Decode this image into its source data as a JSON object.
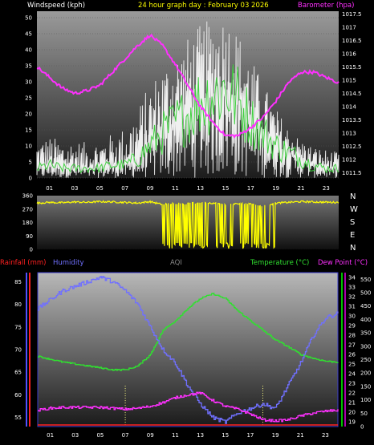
{
  "header": {
    "windspeed": "Windspeed (kph)",
    "title": "24 hour graph day : February 03 2026",
    "barometer": "Barometer (hpa)"
  },
  "bottom_header": {
    "rainfall": "Rainfall (mm)",
    "humidity": "Humidity",
    "aqi": "AQI",
    "temperature": "Temperature (°C)",
    "dewpoint": "Dew Point (°C)"
  },
  "directions": [
    "N",
    "W",
    "S",
    "E",
    "N"
  ],
  "colors": {
    "windspeed": "#ffffff",
    "gust_bg": "#ffffff",
    "wind_green": "#40d040",
    "barometer": "#ff30ff",
    "wind_dir": "#ffff00",
    "temperature": "#30e030",
    "humidity": "#7070ff",
    "dewpoint": "#ff30ff",
    "rainfall": "#ff2020",
    "axis_left": "#5050ff",
    "axis_temp": "#00c000"
  },
  "x_ticks": [
    "01",
    "03",
    "05",
    "07",
    "09",
    "11",
    "13",
    "15",
    "17",
    "19",
    "21",
    "23"
  ],
  "chart_data": [
    {
      "type": "line",
      "title": "24 hour graph day : February 03 2026",
      "ylabel": "Windspeed (kph)",
      "ylabel_right": "Barometer (hpa)",
      "ylim": [
        0,
        52
      ],
      "ylim_right": [
        1011.3,
        1017.6
      ],
      "y_ticks": [
        "0",
        "5",
        "10",
        "15",
        "20",
        "25",
        "30",
        "35",
        "40",
        "45",
        "50"
      ],
      "y_ticks_right": [
        "1011.5",
        "1012",
        "1012.5",
        "1013",
        "1013.5",
        "1014",
        "1014.5",
        "1015",
        "1015.5",
        "1016",
        "1016.5",
        "1017",
        "1017.5"
      ],
      "x": [
        0,
        1,
        2,
        3,
        4,
        5,
        6,
        7,
        8,
        9,
        10,
        11,
        12,
        13,
        14,
        15,
        16,
        17,
        18,
        19,
        20,
        21,
        22,
        23,
        24
      ],
      "series": [
        {
          "name": "Windspeed (kph)",
          "values": [
            3,
            4,
            3,
            3,
            3,
            3,
            4,
            4,
            6,
            10,
            14,
            17,
            20,
            24,
            26,
            28,
            24,
            18,
            14,
            10,
            8,
            6,
            4,
            3,
            3
          ]
        },
        {
          "name": "Gust",
          "values": [
            12,
            13,
            12,
            12,
            11,
            12,
            14,
            16,
            22,
            30,
            36,
            40,
            44,
            48,
            50,
            52,
            46,
            38,
            30,
            22,
            16,
            12,
            10,
            9,
            8
          ]
        },
        {
          "name": "Barometer (hpa)",
          "values": [
            1015.5,
            1015.1,
            1014.7,
            1014.5,
            1014.6,
            1014.8,
            1015.3,
            1015.8,
            1016.3,
            1016.7,
            1016.3,
            1015.6,
            1014.8,
            1014.0,
            1013.4,
            1012.9,
            1012.9,
            1013.2,
            1013.6,
            1014.2,
            1014.9,
            1015.3,
            1015.3,
            1015.1,
            1014.9
          ]
        }
      ]
    },
    {
      "type": "line",
      "ylabel": "Wind direction",
      "ylim": [
        0,
        360
      ],
      "y_ticks": [
        "0",
        "90",
        "180",
        "270",
        "360"
      ],
      "x": [
        0,
        1,
        2,
        3,
        4,
        5,
        6,
        7,
        8,
        9,
        10,
        11,
        12,
        13,
        14,
        15,
        16,
        17,
        18,
        19,
        20,
        21,
        22,
        23,
        24
      ],
      "series": [
        {
          "name": "Wind direction",
          "values": [
            310,
            315,
            312,
            318,
            315,
            320,
            318,
            315,
            310,
            320,
            300,
            310,
            305,
            315,
            310,
            300,
            305,
            310,
            290,
            310,
            315,
            320,
            318,
            316,
            315
          ]
        }
      ]
    },
    {
      "type": "line",
      "ylim": [
        53,
        87
      ],
      "y_ticks": [
        "55",
        "60",
        "65",
        "70",
        "75",
        "80",
        "85"
      ],
      "ylim_temp": [
        18.5,
        34.5
      ],
      "y_ticks_temp": [
        "19",
        "20",
        "21",
        "22",
        "23",
        "24",
        "25",
        "26",
        "27",
        "28",
        "29",
        "30",
        "31",
        "32",
        "33",
        "34"
      ],
      "ylim_aqi": [
        0,
        575
      ],
      "y_ticks_aqi": [
        "0",
        "50",
        "100",
        "150",
        "200",
        "250",
        "300",
        "350",
        "400",
        "450",
        "500",
        "550"
      ],
      "x": [
        0,
        1,
        2,
        3,
        4,
        5,
        6,
        7,
        8,
        9,
        10,
        11,
        12,
        13,
        14,
        15,
        16,
        17,
        18,
        19,
        20,
        21,
        22,
        23,
        24
      ],
      "series": [
        {
          "name": "Humidity",
          "values": [
            79,
            81,
            83,
            84,
            85,
            86,
            85,
            83,
            80,
            75,
            70,
            67,
            62,
            58,
            55,
            54,
            56,
            57,
            58,
            57,
            62,
            67,
            73,
            77,
            78
          ]
        },
        {
          "name": "Temperature (°C)",
          "values": [
            25.8,
            25.5,
            25.2,
            25.0,
            24.8,
            24.6,
            24.4,
            24.4,
            24.8,
            26.0,
            28.5,
            29.5,
            30.8,
            31.8,
            32.3,
            31.8,
            30.5,
            29.5,
            28.5,
            27.5,
            26.8,
            26.0,
            25.6,
            25.3,
            25.2
          ]
        },
        {
          "name": "Dew Point (°C)",
          "values": [
            20.2,
            20.4,
            20.5,
            20.5,
            20.5,
            20.5,
            20.4,
            20.3,
            20.4,
            20.6,
            21.0,
            21.5,
            21.8,
            22.0,
            21.2,
            20.6,
            20.3,
            19.8,
            19.2,
            19.1,
            19.2,
            19.6,
            19.9,
            20.1,
            20.2
          ]
        },
        {
          "name": "Rainfall (mm)",
          "values": [
            0,
            0,
            0,
            0,
            0,
            0,
            0,
            0,
            0,
            0,
            0,
            0,
            0,
            0,
            0,
            0,
            0,
            0,
            0,
            0,
            0,
            0,
            0,
            0,
            0
          ]
        }
      ]
    }
  ]
}
